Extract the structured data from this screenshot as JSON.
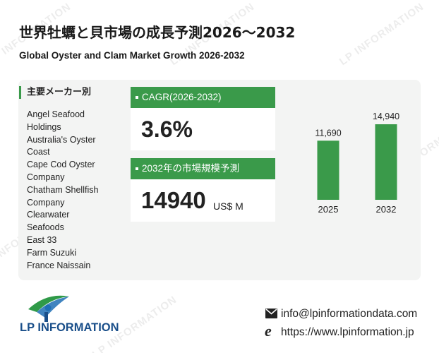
{
  "title_jp": "世界牡蠣と貝市場の成長予測2026～2032",
  "title_en": "Global Oyster and Clam Market Growth 2026-2032",
  "manufacturers": {
    "heading": "主要メーカー別",
    "items": [
      "Angel Seafood",
      "Holdings",
      "Australia's Oyster",
      "Coast",
      "Cape Cod Oyster",
      "Company",
      "Chatham Shellfish",
      "Company",
      "Clearwater",
      "Seafoods",
      "East 33",
      "Farm Suzuki",
      "France Naissain"
    ]
  },
  "cagr": {
    "label": "CAGR(2026-2032)",
    "value": "3.6%"
  },
  "forecast": {
    "label": "2032年の市場規模予測",
    "value": "14940",
    "unit": "US$ M"
  },
  "chart_data": {
    "type": "bar",
    "categories": [
      "2025",
      "2032"
    ],
    "values": [
      11690,
      14940
    ],
    "data_labels": [
      "11,690",
      "14,940"
    ],
    "ylim": [
      0,
      14940
    ],
    "color": "#3a9a4a",
    "grid": false
  },
  "brand": {
    "name": "LP INFORMATION",
    "watermark": "LP INFORMATION"
  },
  "contact": {
    "email": "info@lpinformationdata.com",
    "website": "https://www.lpinformation.jp"
  },
  "icons": {
    "email": "envelope-icon",
    "web": "web-e-icon",
    "logo": "lp-logo-icon"
  }
}
